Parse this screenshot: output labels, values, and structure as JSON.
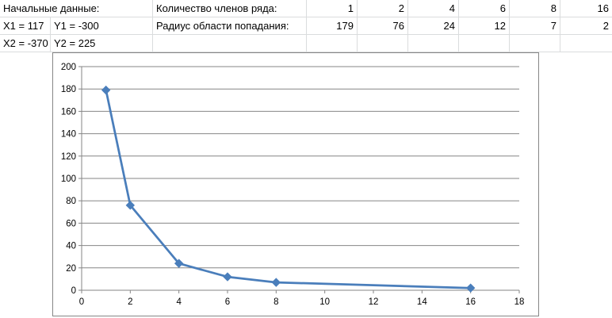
{
  "sheet": {
    "start_label": "Начальные данные:",
    "x1": "X1 = 117",
    "y1": "Y1 = -300",
    "x2": "X2 = -370",
    "y2": "Y2 = 225",
    "terms_label": "Количество членов ряда:",
    "radius_label": "Радиус области попадания:",
    "terms": [
      "1",
      "2",
      "4",
      "6",
      "8",
      "16"
    ],
    "radii": [
      "179",
      "76",
      "24",
      "12",
      "7",
      "2"
    ]
  },
  "chart_data": {
    "type": "scatter",
    "line": true,
    "marker": "diamond",
    "color": "#4a7ebb",
    "x": [
      1,
      2,
      4,
      6,
      8,
      16
    ],
    "y": [
      179,
      76,
      24,
      12,
      7,
      2
    ],
    "xlim": [
      0,
      18
    ],
    "ylim": [
      0,
      200
    ],
    "xticks": [
      "0",
      "2",
      "4",
      "6",
      "8",
      "10",
      "12",
      "14",
      "16",
      "18"
    ],
    "yticks": [
      "0",
      "20",
      "40",
      "60",
      "80",
      "100",
      "120",
      "140",
      "160",
      "180",
      "200"
    ],
    "grid": "horizontal",
    "title": "",
    "xlabel": "",
    "ylabel": ""
  }
}
